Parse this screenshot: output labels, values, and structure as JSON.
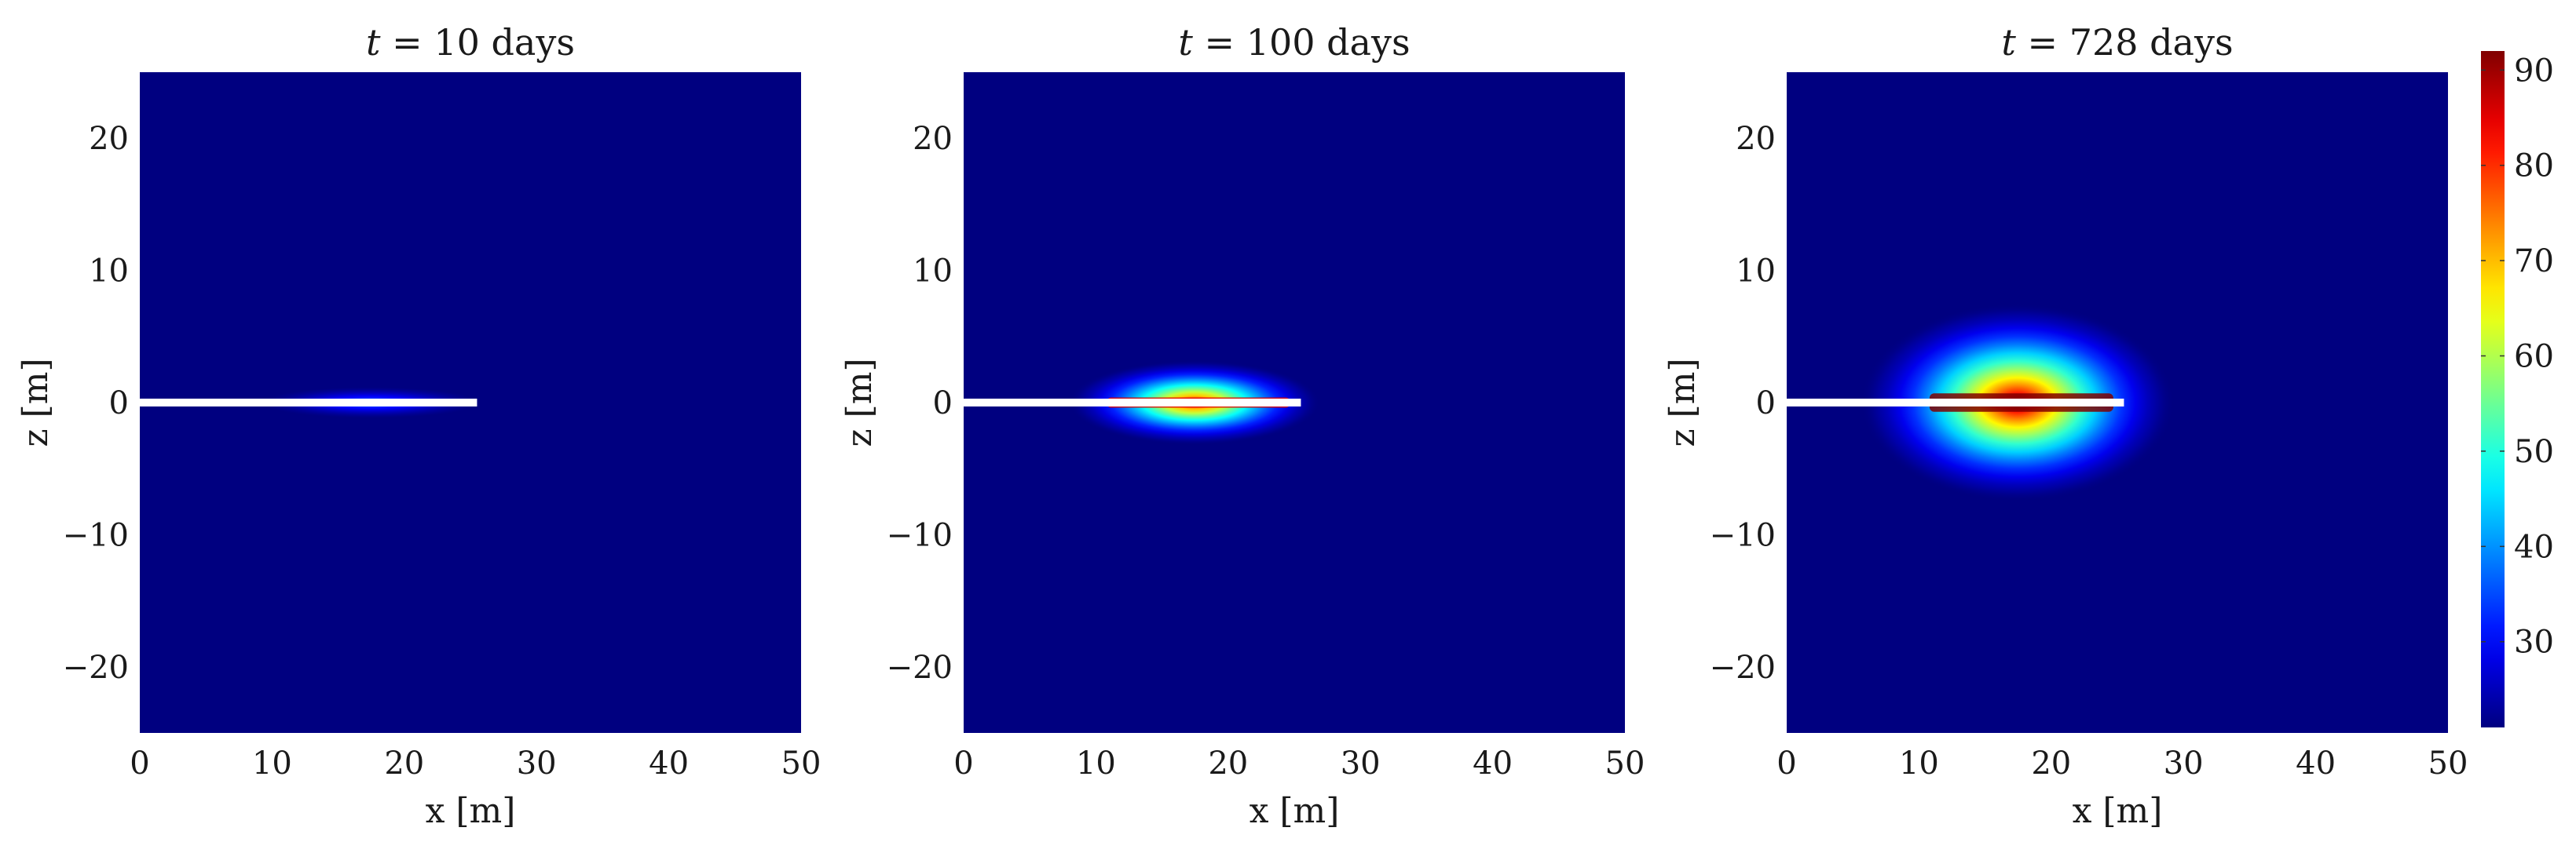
{
  "chart_data": {
    "type": "heatmap",
    "layout": "three panels side by side, shared colorbar on the right",
    "colormap": "jet",
    "colorbar": {
      "range": [
        21,
        92
      ],
      "ticks": [
        30,
        40,
        50,
        60,
        70,
        80,
        90
      ]
    },
    "fracture": {
      "color": "#ffffff",
      "x_range": [
        0,
        25.5
      ],
      "z": 0
    },
    "panels": [
      {
        "title": {
          "prefix": "t",
          "rest": " = 10 days"
        },
        "xlabel": "x [m]",
        "ylabel": "z [m]",
        "xlim": [
          0,
          50
        ],
        "ylim": [
          -25,
          25
        ],
        "xticks": [
          0,
          10,
          20,
          30,
          40,
          50
        ],
        "yticks": [
          -20,
          -10,
          0,
          10,
          20
        ],
        "background_value": 21,
        "hot_zone": {
          "x_range": [
            10,
            25.5
          ],
          "center_x": 17,
          "peak_value": 40,
          "half_width_z": 0.4,
          "halo_z": 1.2
        }
      },
      {
        "title": {
          "prefix": "t",
          "rest": " = 100 days"
        },
        "xlabel": "x [m]",
        "ylabel": "z [m]",
        "xlim": [
          0,
          50
        ],
        "ylim": [
          -25,
          25
        ],
        "xticks": [
          0,
          10,
          20,
          30,
          40,
          50
        ],
        "yticks": [
          -20,
          -10,
          0,
          10,
          20
        ],
        "background_value": 21,
        "hot_zone": {
          "x_range": [
            10,
            25.5
          ],
          "center_x": 17,
          "peak_value": 85,
          "half_width_z": 1.1,
          "halo_z": 3.2
        }
      },
      {
        "title": {
          "prefix": "t",
          "rest": " = 728 days"
        },
        "xlabel": "x [m]",
        "ylabel": "z [m]",
        "xlim": [
          0,
          50
        ],
        "ylim": [
          -25,
          25
        ],
        "xticks": [
          0,
          10,
          20,
          30,
          40,
          50
        ],
        "yticks": [
          -20,
          -10,
          0,
          10,
          20
        ],
        "background_value": 21,
        "hot_zone": {
          "x_range": [
            10,
            25.5
          ],
          "center_x": 17,
          "peak_value": 92,
          "half_width_z": 2.0,
          "halo_z": 7.5
        }
      }
    ]
  }
}
